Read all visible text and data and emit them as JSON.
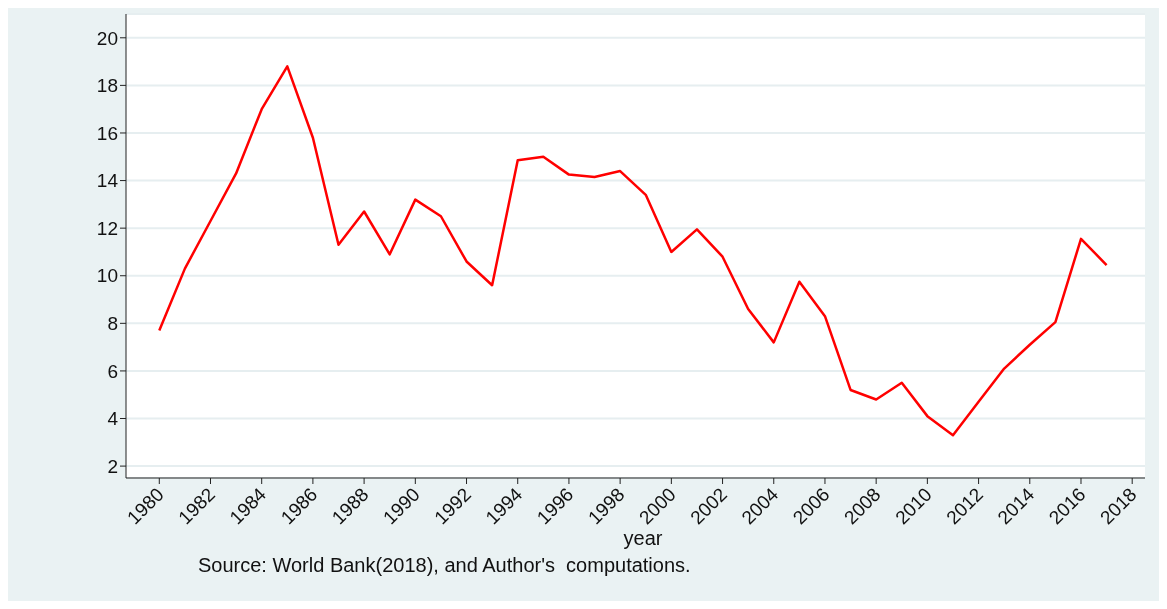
{
  "chart_data": {
    "type": "line",
    "xlabel": "year",
    "annotations": [
      "Source: World Bank(2018), and Author's  computations."
    ],
    "x": [
      1980,
      1981,
      1982,
      1983,
      1984,
      1985,
      1986,
      1987,
      1988,
      1989,
      1990,
      1991,
      1992,
      1993,
      1994,
      1995,
      1996,
      1997,
      1998,
      1999,
      2000,
      2001,
      2002,
      2003,
      2004,
      2005,
      2006,
      2007,
      2008,
      2009,
      2010,
      2011,
      2012,
      2013,
      2014,
      2015,
      2016,
      2017
    ],
    "series": [
      {
        "color": "#ff0000",
        "values": [
          7.7,
          10.3,
          12.3,
          14.3,
          17.0,
          18.8,
          15.8,
          11.3,
          12.7,
          10.9,
          13.2,
          12.5,
          10.6,
          9.6,
          14.85,
          15.0,
          14.25,
          14.15,
          14.4,
          13.4,
          11.0,
          11.95,
          10.8,
          8.6,
          7.2,
          9.75,
          8.3,
          5.2,
          4.8,
          5.5,
          4.1,
          3.3,
          4.7,
          6.1,
          7.1,
          8.05,
          11.55,
          10.45
        ]
      }
    ],
    "xlim": [
      1978.7,
      2018.5
    ],
    "xticks": [
      1980,
      1982,
      1984,
      1986,
      1988,
      1990,
      1992,
      1994,
      1996,
      1998,
      2000,
      2002,
      2004,
      2006,
      2008,
      2010,
      2012,
      2014,
      2016,
      2018
    ],
    "ylim": [
      1.5,
      21
    ],
    "yticks": [
      2,
      4,
      6,
      8,
      10,
      12,
      14,
      16,
      18,
      20
    ],
    "grid": "y",
    "legend": false,
    "marker": "none",
    "line_style": "solid"
  }
}
